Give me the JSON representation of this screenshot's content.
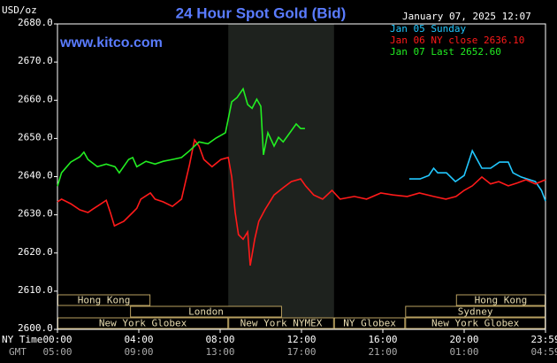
{
  "chart_data": {
    "type": "line",
    "title": "24 Hour Spot Gold (Bid)",
    "timestamp": "January 07, 2025 12:07",
    "site": "www.kitco.com",
    "y_label": "USD/oz",
    "x_label": "NY Time",
    "x2_label": "GMT",
    "xlim": [
      0,
      24
    ],
    "ylim": [
      2600,
      2680
    ],
    "xticks": [
      {
        "value": 0,
        "label": "00:00"
      },
      {
        "value": 4,
        "label": "04:00"
      },
      {
        "value": 8,
        "label": "08:00"
      },
      {
        "value": 12,
        "label": "12:00"
      },
      {
        "value": 16,
        "label": "16:00"
      },
      {
        "value": 20,
        "label": "20:00"
      },
      {
        "value": 24,
        "label": "23:59"
      }
    ],
    "x2tick_labels": [
      "05:00",
      "09:00",
      "13:00",
      "17:00",
      "21:00",
      "01:00",
      "04:59"
    ],
    "yticks": [
      {
        "value": 2600,
        "label": "2600.0"
      },
      {
        "value": 2610,
        "label": "2610.0"
      },
      {
        "value": 2620,
        "label": "2620.0"
      },
      {
        "value": 2630,
        "label": "2630.0"
      },
      {
        "value": 2640,
        "label": "2640.0"
      },
      {
        "value": 2650,
        "label": "2650.0"
      },
      {
        "value": 2660,
        "label": "2660.0"
      },
      {
        "value": 2670,
        "label": "2670.0"
      },
      {
        "value": 2680,
        "label": "2680.0"
      }
    ],
    "grid": false,
    "highlight_xlim": [
      8.4,
      13.6
    ],
    "series": [
      {
        "name": "Jan 05 Sunday",
        "color": "#22c8ff",
        "x": [
          17.3,
          17.83,
          18.26,
          18.5,
          18.7,
          19.13,
          19.57,
          20,
          20.4,
          20.87,
          21.3,
          21.74,
          22.17,
          22.4,
          22.8,
          23.5,
          23.8,
          24
        ],
        "values": [
          2639.4,
          2639.4,
          2640.3,
          2642.2,
          2641,
          2641,
          2638.7,
          2640.3,
          2646.8,
          2642.2,
          2642.2,
          2643.8,
          2643.8,
          2641,
          2639.9,
          2638.7,
          2636.4,
          2633.6
        ]
      },
      {
        "name": "Jan 06 NY close 2636.10",
        "color": "#ff1a1a",
        "x": [
          0,
          0.2,
          0.65,
          1.1,
          1.5,
          1.74,
          2,
          2.4,
          2.6,
          2.8,
          3.26,
          3.7,
          3.9,
          4.1,
          4.57,
          4.8,
          5.2,
          5.65,
          6.1,
          6.3,
          6.5,
          6.74,
          6.96,
          7.2,
          7.6,
          8.04,
          8.4,
          8.57,
          8.74,
          8.9,
          9.13,
          9.35,
          9.48,
          9.7,
          9.9,
          10.2,
          10.65,
          11.1,
          11.5,
          11.96,
          12.2,
          12.6,
          13.04,
          13.5,
          13.9,
          14.6,
          15.2,
          15.9,
          16.5,
          17.2,
          17.8,
          18.5,
          19.1,
          19.6,
          20,
          20.4,
          20.87,
          21.3,
          21.7,
          22.17,
          22.6,
          23.04,
          23.5,
          24
        ],
        "values": [
          2633.4,
          2634.1,
          2632.9,
          2631.3,
          2630.6,
          2631.5,
          2632.4,
          2633.8,
          2630.6,
          2627.1,
          2628.3,
          2630.6,
          2631.7,
          2634.1,
          2635.7,
          2634.1,
          2633.4,
          2632.2,
          2634.1,
          2638.7,
          2643.3,
          2649.6,
          2648,
          2644.5,
          2642.6,
          2644.5,
          2645,
          2639.9,
          2630.6,
          2624.8,
          2623.6,
          2625.5,
          2616.7,
          2623.6,
          2628.3,
          2631.3,
          2635.2,
          2637.1,
          2638.7,
          2639.4,
          2637.6,
          2635.2,
          2634.1,
          2636.4,
          2634.1,
          2634.8,
          2634.1,
          2635.7,
          2635.2,
          2634.8,
          2635.7,
          2634.8,
          2634.1,
          2634.8,
          2636.4,
          2637.6,
          2639.9,
          2638.1,
          2638.7,
          2637.6,
          2638.3,
          2639.2,
          2638.1,
          2639.2
        ]
      },
      {
        "name": "Jan 07 Last 2652.60",
        "color": "#22ee22",
        "x": [
          0,
          0.2,
          0.65,
          1.1,
          1.3,
          1.5,
          1.96,
          2.4,
          2.83,
          3.04,
          3.5,
          3.7,
          3.9,
          4.35,
          4.8,
          5.2,
          5.65,
          6.1,
          6.5,
          6.96,
          7.4,
          7.8,
          8.26,
          8.57,
          8.83,
          9.13,
          9.35,
          9.57,
          9.8,
          10,
          10.13,
          10.35,
          10.65,
          10.87,
          11.1,
          11.43,
          11.74,
          11.96,
          12.17
        ],
        "values": [
          2637.5,
          2641,
          2643.8,
          2645.2,
          2646.4,
          2644.5,
          2642.6,
          2643.3,
          2642.6,
          2641,
          2644.5,
          2645,
          2642.6,
          2644,
          2643.3,
          2644,
          2644.5,
          2645,
          2646.8,
          2649.1,
          2648.6,
          2650.1,
          2651.5,
          2659.6,
          2660.7,
          2663,
          2658.9,
          2657.9,
          2660.3,
          2658.4,
          2645.7,
          2651.5,
          2648,
          2650.3,
          2649.1,
          2651.5,
          2653.8,
          2652.6,
          2652.6
        ]
      }
    ],
    "sessions": [
      [
        {
          "name": "Hong Kong",
          "start": 0,
          "end": 4.57
        },
        {
          "name": "Hong Kong",
          "start": 19.6,
          "end": 24
        }
      ],
      [
        {
          "name": "London",
          "start": 3.57,
          "end": 11.04
        },
        {
          "name": "Sydney",
          "start": 17.1,
          "end": 24
        }
      ],
      [
        {
          "name": "New York Globex",
          "start": 0,
          "end": 8.4
        },
        {
          "name": "New York NYMEX",
          "start": 8.4,
          "end": 13.6
        },
        {
          "name": "NY Globex",
          "start": 13.6,
          "end": 17.1
        },
        {
          "name": "New York Globex",
          "start": 17.1,
          "end": 24
        }
      ]
    ]
  }
}
